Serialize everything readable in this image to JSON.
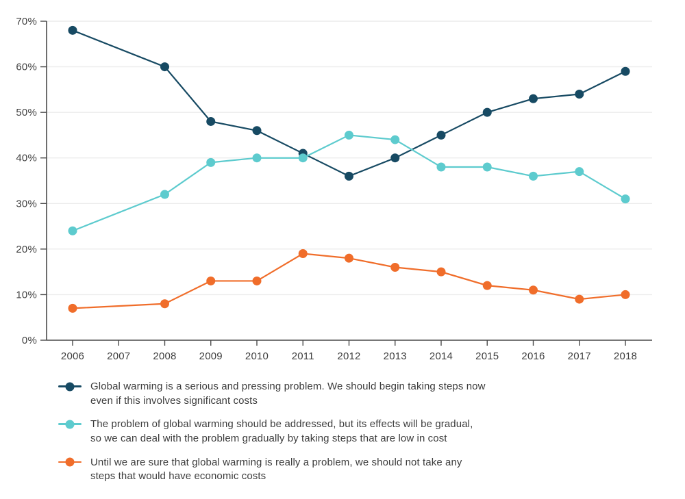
{
  "chart_data": {
    "type": "line",
    "title": "",
    "xlabel": "",
    "ylabel": "",
    "x": [
      "2006",
      "2007",
      "2008",
      "2009",
      "2010",
      "2011",
      "2012",
      "2013",
      "2014",
      "2015",
      "2016",
      "2017",
      "2018"
    ],
    "y_ticks": [
      "0%",
      "10%",
      "20%",
      "30%",
      "40%",
      "50%",
      "60%",
      "70%"
    ],
    "ylim": [
      0,
      70
    ],
    "grid": "horizontal",
    "legend_position": "bottom",
    "series": [
      {
        "name": "serious-pressing-problem",
        "color": "#174a63",
        "values": [
          68,
          null,
          60,
          48,
          46,
          41,
          36,
          40,
          45,
          50,
          53,
          54,
          59
        ],
        "label_lines": [
          "Global warming is a serious and pressing problem. We should begin taking steps now",
          "even if this involves significant costs"
        ]
      },
      {
        "name": "gradual-low-cost-steps",
        "color": "#5dcbce",
        "values": [
          24,
          null,
          32,
          39,
          40,
          40,
          45,
          44,
          38,
          38,
          36,
          37,
          31
        ],
        "label_lines": [
          "The problem of global warming should be addressed, but its effects will be gradual,",
          "so we can deal with the problem gradually by taking steps that are low in cost"
        ]
      },
      {
        "name": "no-steps-with-economic-costs",
        "color": "#f06d2a",
        "values": [
          7,
          null,
          8,
          13,
          13,
          19,
          18,
          16,
          15,
          12,
          11,
          9,
          10
        ],
        "label_lines": [
          "Until we are sure that global warming is really a problem, we should not take any",
          "steps that would have economic costs"
        ]
      }
    ]
  },
  "appearance": {
    "axis_color": "#4a4a4a",
    "grid_color": "#ececec",
    "tick_label_color": "#3f3f3f",
    "background": "#ffffff"
  }
}
